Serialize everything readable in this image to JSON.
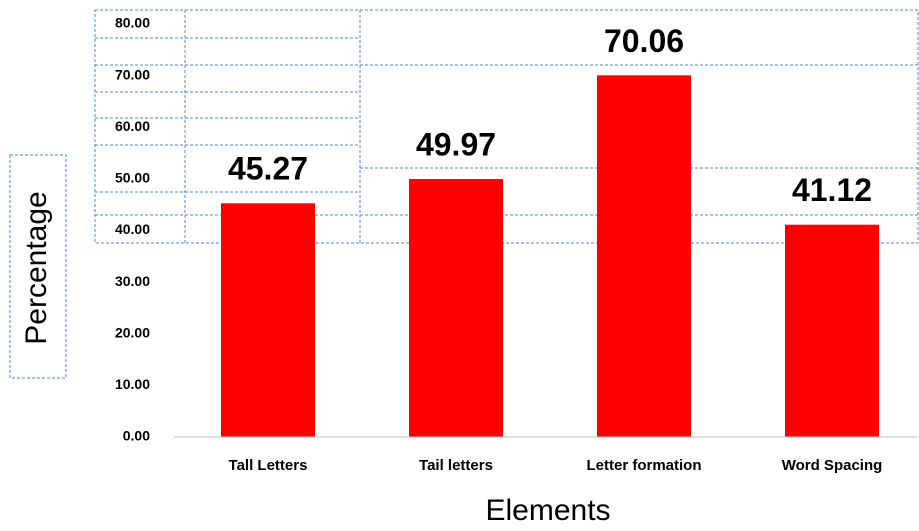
{
  "chart_data": {
    "type": "bar",
    "x_label": "Elements",
    "y_label": "Percentage",
    "categories": [
      "Tall Letters",
      "Tail letters",
      "Letter formation",
      "Word Spacing"
    ],
    "values": [
      45.27,
      49.97,
      70.06,
      41.12
    ],
    "color": "#ff0000",
    "ylim": [
      0,
      80
    ],
    "yticks": [
      {
        "value": 0,
        "label": "0.00"
      },
      {
        "value": 10,
        "label": "10.00"
      },
      {
        "value": 20,
        "label": "20.00"
      },
      {
        "value": 30,
        "label": "30.00"
      },
      {
        "value": 40,
        "label": "40.00"
      },
      {
        "value": 50,
        "label": "50.00"
      },
      {
        "value": 60,
        "label": "60.00"
      },
      {
        "value": 70,
        "label": "70.00"
      },
      {
        "value": 80,
        "label": "80.00"
      }
    ],
    "grid": false
  }
}
